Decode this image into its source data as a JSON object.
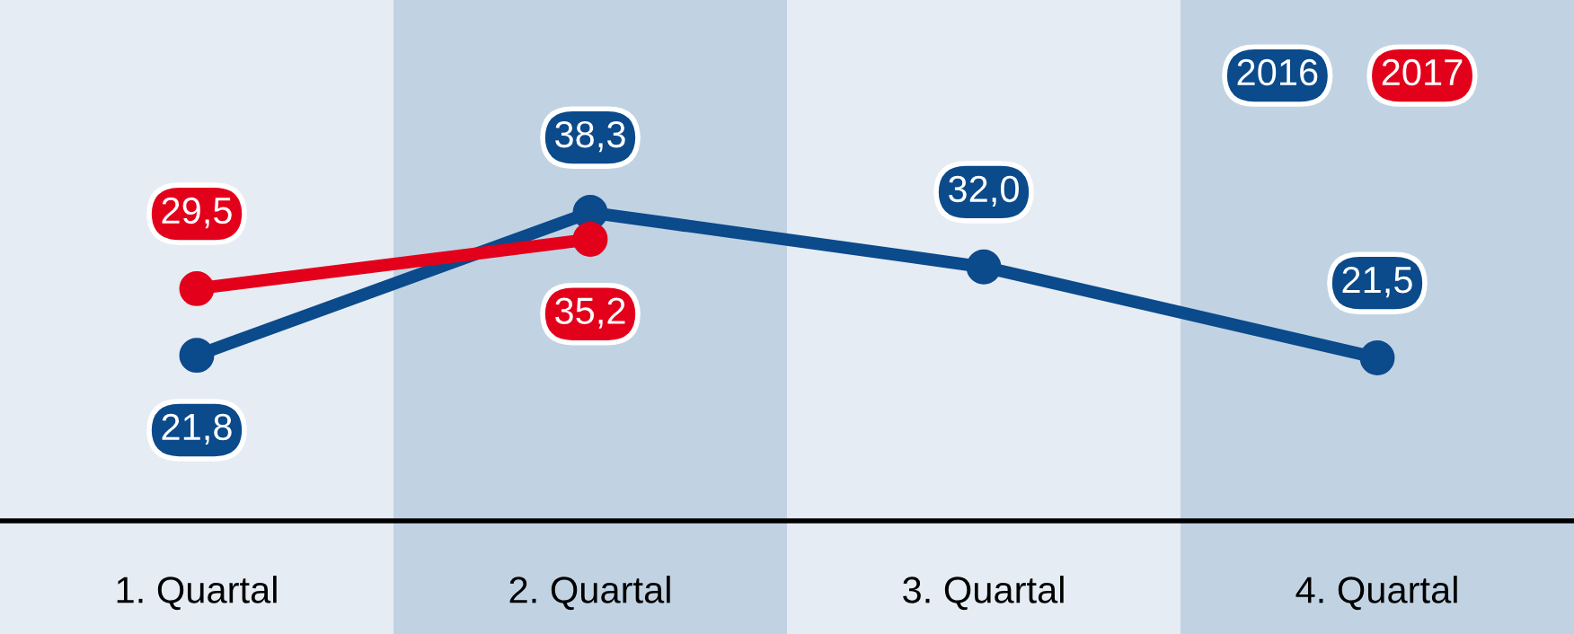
{
  "chart_data": {
    "type": "line",
    "categories": [
      "1. Quartal",
      "2. Quartal",
      "3. Quartal",
      "4. Quartal"
    ],
    "series": [
      {
        "name": "2016",
        "color": "#0b4a8b",
        "values": [
          21.8,
          38.3,
          32.0,
          21.5
        ],
        "value_labels": [
          "21,8",
          "38,3",
          "32,0",
          "21,5"
        ]
      },
      {
        "name": "2017",
        "color": "#e3001b",
        "values": [
          29.5,
          35.2,
          null,
          null
        ],
        "value_labels": [
          "29,5",
          "35,2",
          null,
          null
        ]
      }
    ],
    "marker": "circle",
    "line_style": "solid",
    "legend": "top right",
    "grid": false,
    "tick_labels": "x"
  }
}
